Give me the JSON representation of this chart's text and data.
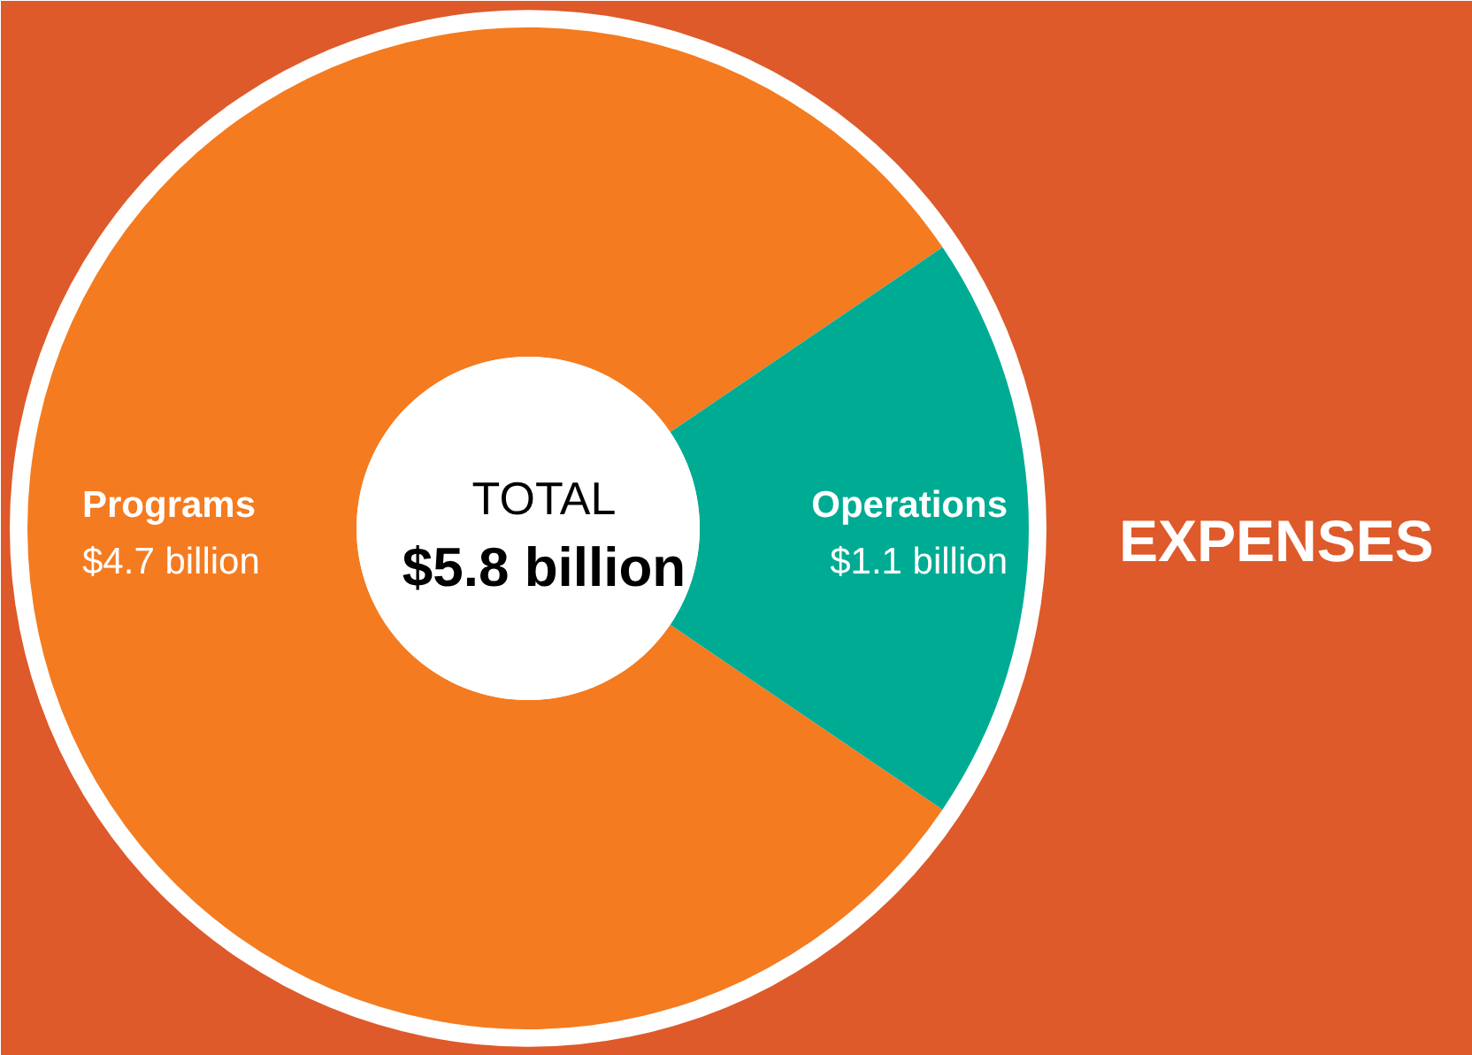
{
  "chart_data": {
    "type": "donut",
    "title": "EXPENSES",
    "categories": [
      "Programs",
      "Operations"
    ],
    "values": [
      4.7,
      1.1
    ],
    "colors": [
      "#f47b20",
      "#00ab94"
    ],
    "value_labels": [
      "$4.7 billion",
      "$1.1 billion"
    ],
    "annotations": [
      "TOTAL",
      "$5.8 billion"
    ]
  }
}
